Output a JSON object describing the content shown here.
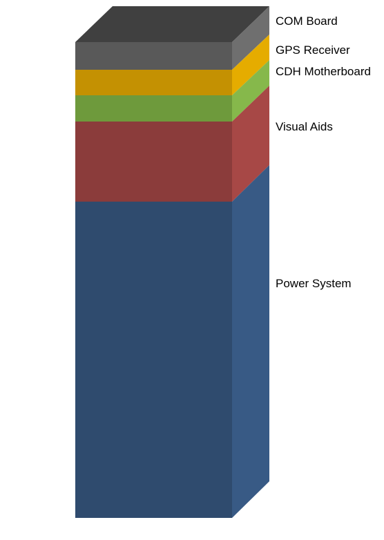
{
  "diagram": {
    "layers": [
      {
        "id": "com-board",
        "label": "COM Board",
        "colors": {
          "front": "#595959",
          "side": "#6f6f6f",
          "top": "#404040"
        }
      },
      {
        "id": "gps-receiver",
        "label": "GPS Receiver",
        "colors": {
          "front": "#c49102",
          "side": "#e5ac00"
        }
      },
      {
        "id": "cdh-motherboard",
        "label": "CDH Motherboard",
        "colors": {
          "front": "#6e9a3c",
          "side": "#86b84b"
        }
      },
      {
        "id": "visual-aids",
        "label": "Visual Aids",
        "colors": {
          "front": "#8b3c3b",
          "side": "#a74846"
        }
      },
      {
        "id": "power-system",
        "label": "Power System",
        "colors": {
          "front": "#2f4b6e",
          "side": "#385a85"
        }
      }
    ]
  }
}
